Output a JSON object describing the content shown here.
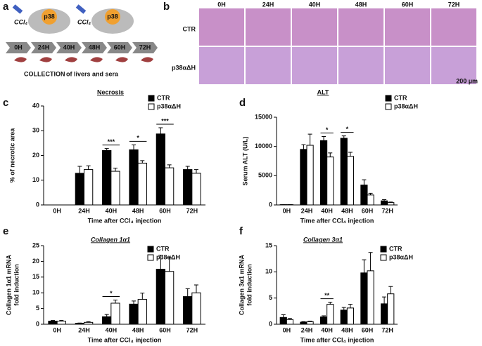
{
  "panel_a": {
    "panel": "a",
    "injections": [
      "CCl₄",
      "CCl₄"
    ],
    "mouse_labels": [
      "p38",
      "p38"
    ],
    "timeline": [
      "0H",
      "24H",
      "40H",
      "48H",
      "60H",
      "72H"
    ],
    "collection_bold": "COLLECTION",
    "collection_rest": "of livers and sera"
  },
  "panel_b": {
    "panel": "b",
    "columns": [
      "0H",
      "24H",
      "40H",
      "48H",
      "60H",
      "72H"
    ],
    "rows": [
      "CTR",
      "p38αΔH"
    ],
    "scale": "200 µm"
  },
  "chart_data": [
    {
      "type": "bar",
      "panel": "c",
      "title": "Necrosis",
      "title_italic": false,
      "ylabel": [
        "% of necrotic area"
      ],
      "xlabel": "Time after CCl₄ injection",
      "categories": [
        "0H",
        "24H",
        "40H",
        "48H",
        "60H",
        "72H"
      ],
      "series": [
        {
          "name": "CTR",
          "color": "#000000",
          "values": [
            0,
            12.8,
            22,
            22.3,
            28.7,
            14.3
          ],
          "errors": [
            0,
            2.8,
            0.8,
            2,
            2.5,
            1.3
          ]
        },
        {
          "name": "p38αΔH",
          "color": "#ffffff",
          "values": [
            0,
            14.3,
            13.6,
            16.9,
            15,
            12.8
          ],
          "errors": [
            0,
            1.5,
            1.3,
            1,
            1.2,
            1.5
          ]
        }
      ],
      "ylim": [
        0,
        40
      ],
      "yticks": [
        0,
        10,
        20,
        30,
        40
      ],
      "annotations": [
        {
          "text": "***",
          "x": "40H"
        },
        {
          "text": "*",
          "x": "48H"
        },
        {
          "text": "***",
          "x": "60H"
        }
      ]
    },
    {
      "type": "bar",
      "panel": "d",
      "title": "ALT",
      "title_italic": false,
      "ylabel": [
        "Serum ALT (U/L)"
      ],
      "xlabel": "Time after CCl₄ injection",
      "categories": [
        "0H",
        "24H",
        "40H",
        "48H",
        "60H",
        "72H"
      ],
      "series": [
        {
          "name": "CTR",
          "color": "#000000",
          "values": [
            50,
            9500,
            11000,
            11400,
            3400,
            700
          ],
          "errors": [
            0,
            800,
            700,
            400,
            900,
            200
          ]
        },
        {
          "name": "p38αΔH",
          "color": "#ffffff",
          "values": [
            50,
            10200,
            8200,
            8300,
            1700,
            400
          ],
          "errors": [
            0,
            1900,
            700,
            700,
            300,
            100
          ]
        }
      ],
      "ylim": [
        0,
        15000
      ],
      "yticks": [
        0,
        5000,
        10000,
        15000
      ],
      "annotations": [
        {
          "text": "*",
          "x": "40H"
        },
        {
          "text": "*",
          "x": "48H"
        }
      ]
    },
    {
      "type": "bar",
      "panel": "e",
      "title": "Collagen 1α1",
      "title_italic": true,
      "ylabel": [
        "Collagen 1α1 mRNA",
        "fold induction"
      ],
      "xlabel": "Time after CCl₄ injection",
      "categories": [
        "0H",
        "24H",
        "40H",
        "48H",
        "60H",
        "72H"
      ],
      "series": [
        {
          "name": "CTR",
          "color": "#000000",
          "values": [
            1,
            0.3,
            2.4,
            6.4,
            17.5,
            8.8
          ],
          "errors": [
            0.2,
            0.1,
            0.7,
            1,
            4.5,
            2.5
          ]
        },
        {
          "name": "p38αΔH",
          "color": "#ffffff",
          "values": [
            1,
            0.6,
            6.7,
            7.9,
            16.8,
            10
          ],
          "errors": [
            0.2,
            0.2,
            1,
            2,
            4.5,
            2.5
          ]
        }
      ],
      "ylim": [
        0,
        25
      ],
      "yticks": [
        0,
        5,
        10,
        15,
        20,
        25
      ],
      "annotations": [
        {
          "text": "*",
          "x": "40H"
        }
      ]
    },
    {
      "type": "bar",
      "panel": "f",
      "title": "Collagen 3α1",
      "title_italic": true,
      "ylabel": [
        "Collagen 3α1 mRNA",
        "fold induction"
      ],
      "xlabel": "Time after CCl₄ injection",
      "categories": [
        "0H",
        "24H",
        "40H",
        "48H",
        "60H",
        "72H"
      ],
      "series": [
        {
          "name": "CTR",
          "color": "#000000",
          "values": [
            1.3,
            0.4,
            1.4,
            2.7,
            9.8,
            3.9
          ],
          "errors": [
            0.5,
            0.1,
            0.2,
            0.5,
            2.5,
            1.3
          ]
        },
        {
          "name": "p38αΔH",
          "color": "#ffffff",
          "values": [
            0.9,
            0.5,
            3.8,
            3.1,
            10.2,
            5.8
          ],
          "errors": [
            0.2,
            0.1,
            0.4,
            0.7,
            3.5,
            1.4
          ]
        }
      ],
      "ylim": [
        0,
        15
      ],
      "yticks": [
        0,
        5,
        10,
        15
      ],
      "annotations": [
        {
          "text": "**",
          "x": "40H"
        }
      ]
    }
  ]
}
